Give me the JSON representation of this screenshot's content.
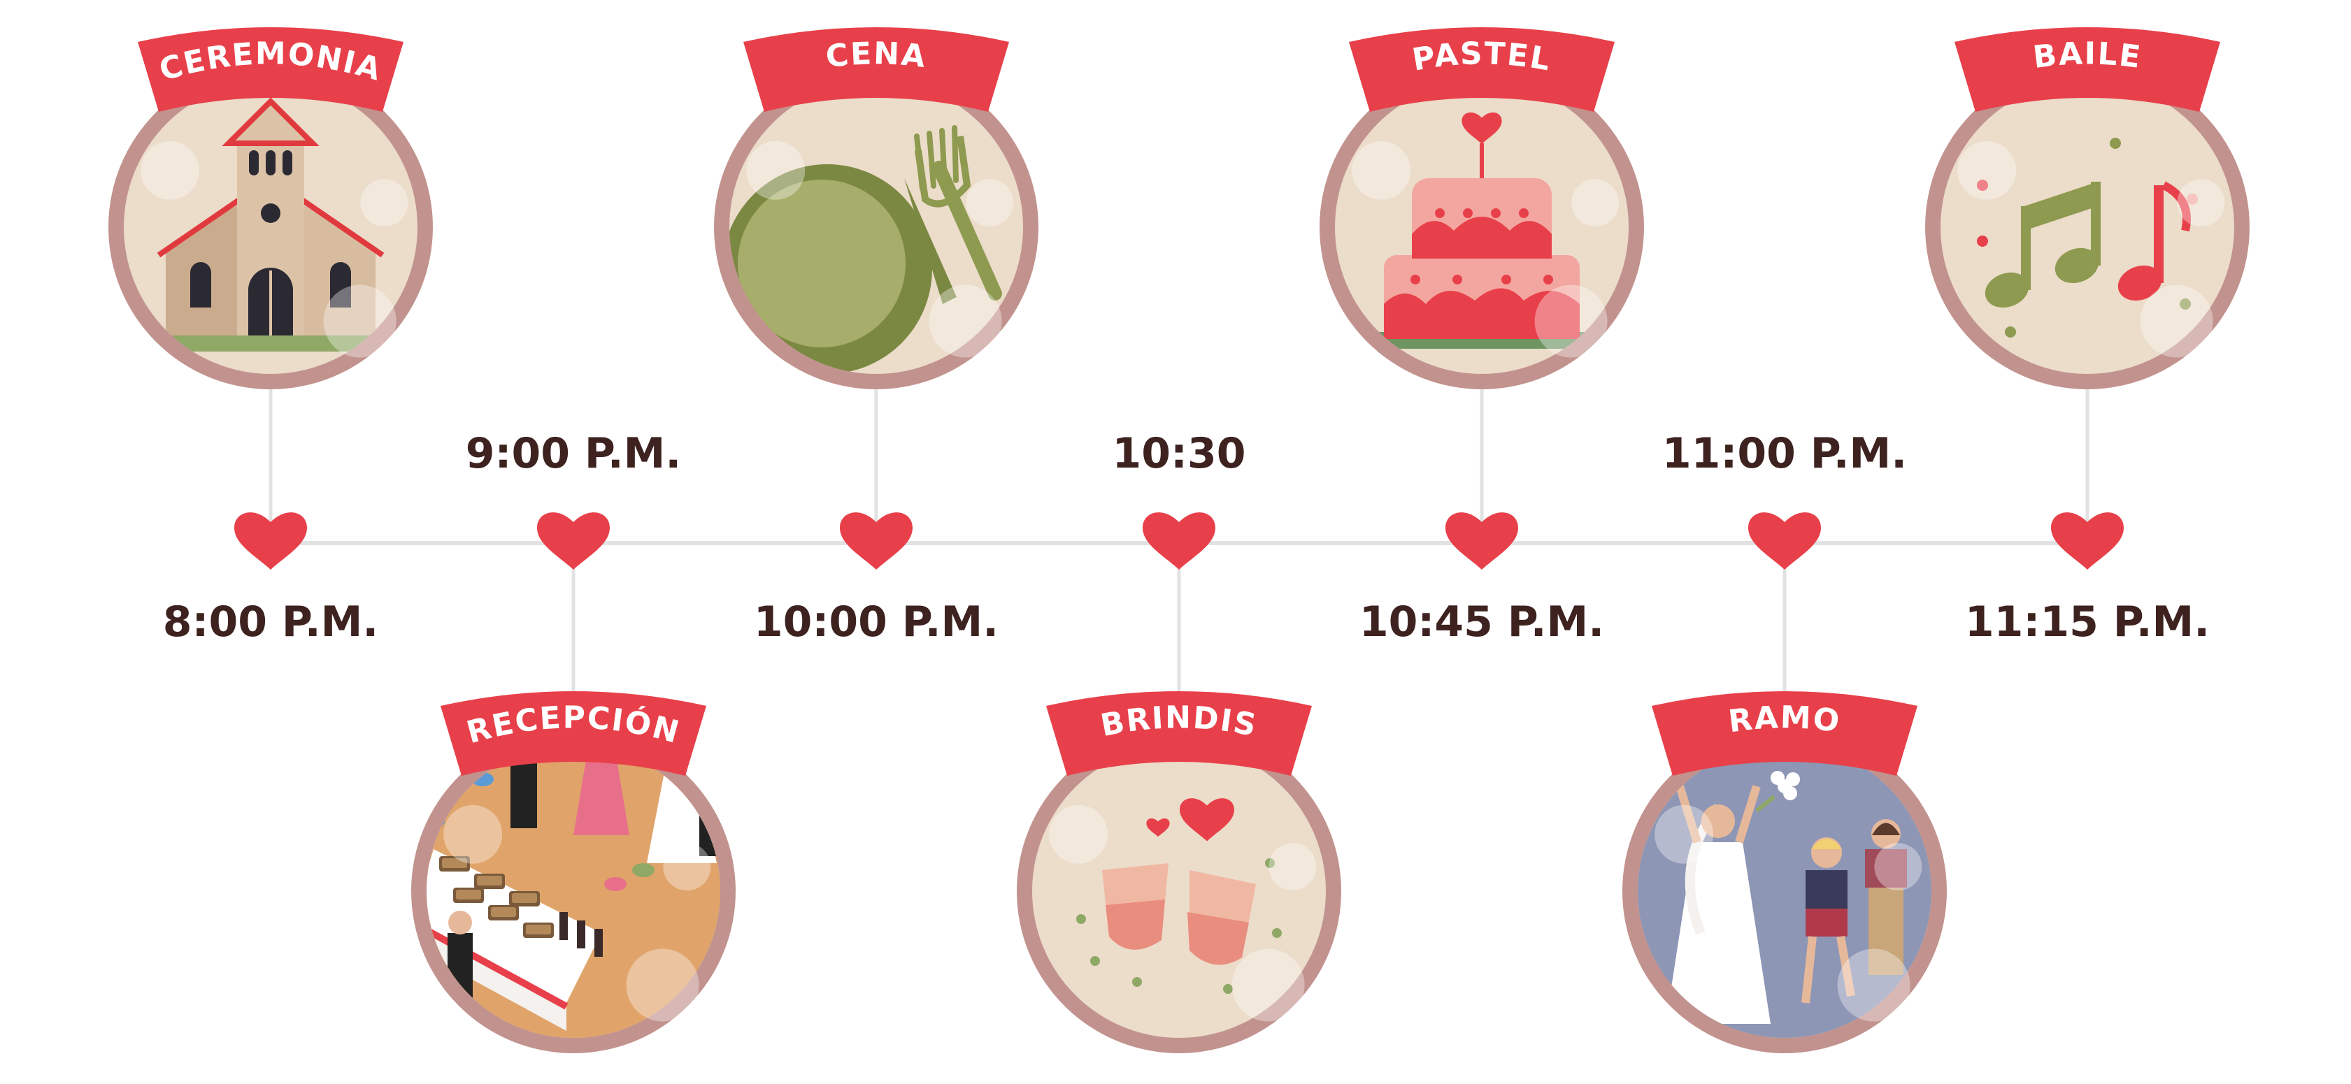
{
  "colors": {
    "ring": "#c2938e",
    "face": "#ecdcca",
    "ribbon": "#e8404a",
    "heart": "#e8404a",
    "connector": "#e2e2e2",
    "text": "#3d2220"
  },
  "events": [
    {
      "title": "CEREMONIA",
      "time": "8:00 P.M.",
      "icon": "church-icon"
    },
    {
      "title": "RECEPCIÓN",
      "time": "9:00 P.M.",
      "icon": "buffet-reception-icon"
    },
    {
      "title": "CENA",
      "time": "10:00 P.M.",
      "icon": "plate-fork-knife-icon"
    },
    {
      "title": "BRINDIS",
      "time": "10:30",
      "icon": "toast-glasses-icon"
    },
    {
      "title": "PASTEL",
      "time": "10:45 P.M.",
      "icon": "wedding-cake-icon"
    },
    {
      "title": "RAMO",
      "time": "11:00 P.M.",
      "icon": "bouquet-toss-icon"
    },
    {
      "title": "BAILE",
      "time": "11:15 P.M.",
      "icon": "music-notes-icon"
    }
  ]
}
